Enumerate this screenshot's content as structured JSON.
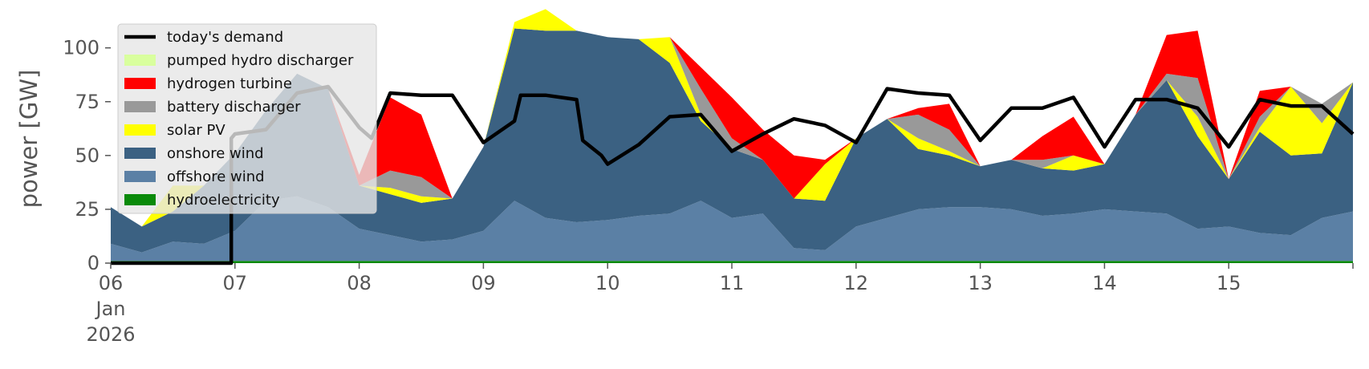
{
  "chart_data": {
    "type": "area",
    "title": "",
    "xlabel": "",
    "ylabel": "power [GW]",
    "ylim": [
      0,
      120
    ],
    "yticks": [
      0,
      25,
      50,
      75,
      100
    ],
    "xlim": [
      0,
      10
    ],
    "x_tick_values": [
      0,
      1,
      2,
      3,
      4,
      5,
      6,
      7,
      8,
      9
    ],
    "x_tick_labels": [
      "06\nJan\n2026",
      "07",
      "08",
      "09",
      "10",
      "11",
      "12",
      "13",
      "14",
      "15"
    ],
    "grid": false,
    "legend_position": "top-left",
    "x": [
      0,
      0.25,
      0.5,
      0.75,
      1,
      1.25,
      1.5,
      1.75,
      2,
      2.25,
      2.5,
      2.75,
      3,
      3.25,
      3.5,
      3.75,
      4,
      4.25,
      4.5,
      4.75,
      5,
      5.25,
      5.5,
      5.75,
      6,
      6.25,
      6.5,
      6.75,
      7,
      7.25,
      7.5,
      7.75,
      8,
      8.25,
      8.5,
      8.75,
      9,
      9.25,
      9.5,
      9.75,
      10
    ],
    "series": [
      {
        "name": "hydroelectricity",
        "color": "#0a8a0a",
        "values": [
          1,
          1,
          1,
          1,
          1,
          1,
          1,
          1,
          1,
          1,
          1,
          1,
          1,
          1,
          1,
          1,
          1,
          1,
          1,
          1,
          1,
          1,
          1,
          1,
          1,
          1,
          1,
          1,
          1,
          1,
          1,
          1,
          1,
          1,
          1,
          1,
          1,
          1,
          1,
          1,
          1
        ]
      },
      {
        "name": "offshore wind",
        "color": "#5b80a5",
        "values": [
          8,
          4,
          9,
          8,
          14,
          28,
          30,
          25,
          15,
          12,
          9,
          10,
          14,
          28,
          20,
          18,
          19,
          21,
          22,
          28,
          20,
          22,
          6,
          5,
          16,
          20,
          24,
          25,
          25,
          24,
          21,
          22,
          24,
          23,
          22,
          15,
          16,
          13,
          12,
          20,
          23
        ]
      },
      {
        "name": "onshore wind",
        "color": "#3b6182",
        "values": [
          17,
          12,
          14,
          27,
          36,
          42,
          57,
          55,
          20,
          19,
          18,
          19,
          39,
          80,
          87,
          89,
          85,
          82,
          70,
          37,
          32,
          25,
          23,
          23,
          41,
          46,
          28,
          24,
          19,
          23,
          22,
          20,
          21,
          45,
          62,
          43,
          22,
          47,
          37,
          30,
          60
        ]
      },
      {
        "name": "solar PV",
        "color": "#ffff00",
        "values": [
          0,
          0,
          12,
          0,
          0,
          0,
          0,
          0,
          0,
          3,
          3,
          0,
          0,
          3,
          10,
          0,
          0,
          0,
          12,
          3,
          0,
          0,
          0,
          17,
          0,
          0,
          5,
          2,
          0,
          0,
          0,
          7,
          0,
          0,
          0,
          9,
          0,
          2,
          32,
          14,
          0
        ]
      },
      {
        "name": "battery discharger",
        "color": "#999999",
        "values": [
          0,
          0,
          0,
          0,
          0,
          0,
          0,
          0,
          0,
          8,
          9,
          0,
          0,
          0,
          0,
          0,
          0,
          0,
          0,
          12,
          5,
          0,
          0,
          0,
          0,
          0,
          11,
          10,
          0,
          0,
          4,
          0,
          0,
          0,
          3,
          18,
          0,
          5,
          0,
          9,
          0
        ]
      },
      {
        "name": "hydrogen turbine",
        "color": "#ff0000",
        "values": [
          0,
          0,
          0,
          0,
          0,
          0,
          0,
          0,
          5,
          34,
          29,
          0,
          0,
          0,
          0,
          0,
          0,
          0,
          0,
          10,
          19,
          14,
          20,
          2,
          0,
          0,
          3,
          12,
          0,
          0,
          11,
          18,
          0,
          0,
          18,
          22,
          0,
          12,
          0,
          0,
          0
        ]
      },
      {
        "name": "pumped hydro discharger",
        "color": "#d9ff9e",
        "values": [
          0,
          0,
          0,
          0,
          0,
          0,
          0,
          0,
          0,
          0,
          0,
          0,
          0,
          0,
          0,
          0,
          0,
          0,
          0,
          0,
          0,
          0,
          0,
          0,
          0,
          0,
          0,
          0,
          0,
          0,
          0,
          0,
          0,
          0,
          0,
          0,
          0,
          0,
          0,
          0,
          0
        ]
      }
    ],
    "demand": {
      "name": "today's demand",
      "color": "#000000",
      "x": [
        0,
        0.97,
        0.97,
        1.0,
        1.25,
        1.5,
        1.75,
        2.0,
        2.1,
        2.25,
        2.5,
        2.75,
        3.0,
        3.25,
        3.3,
        3.5,
        3.75,
        3.8,
        3.95,
        4.0,
        4.25,
        4.5,
        4.75,
        5.0,
        5.25,
        5.5,
        5.75,
        6.0,
        6.25,
        6.5,
        6.75,
        7.0,
        7.25,
        7.5,
        7.75,
        8.0,
        8.25,
        8.5,
        8.75,
        9.0,
        9.25,
        9.5,
        9.75,
        10
      ],
      "values": [
        0,
        0,
        58,
        60,
        62,
        79,
        82,
        63,
        58,
        79,
        78,
        78,
        56,
        66,
        78,
        78,
        76,
        57,
        50,
        46,
        55,
        68,
        69,
        52,
        60,
        67,
        64,
        56,
        81,
        79,
        78,
        57,
        72,
        72,
        77,
        54,
        76,
        76,
        72,
        54,
        76,
        73,
        73,
        60
      ]
    }
  }
}
